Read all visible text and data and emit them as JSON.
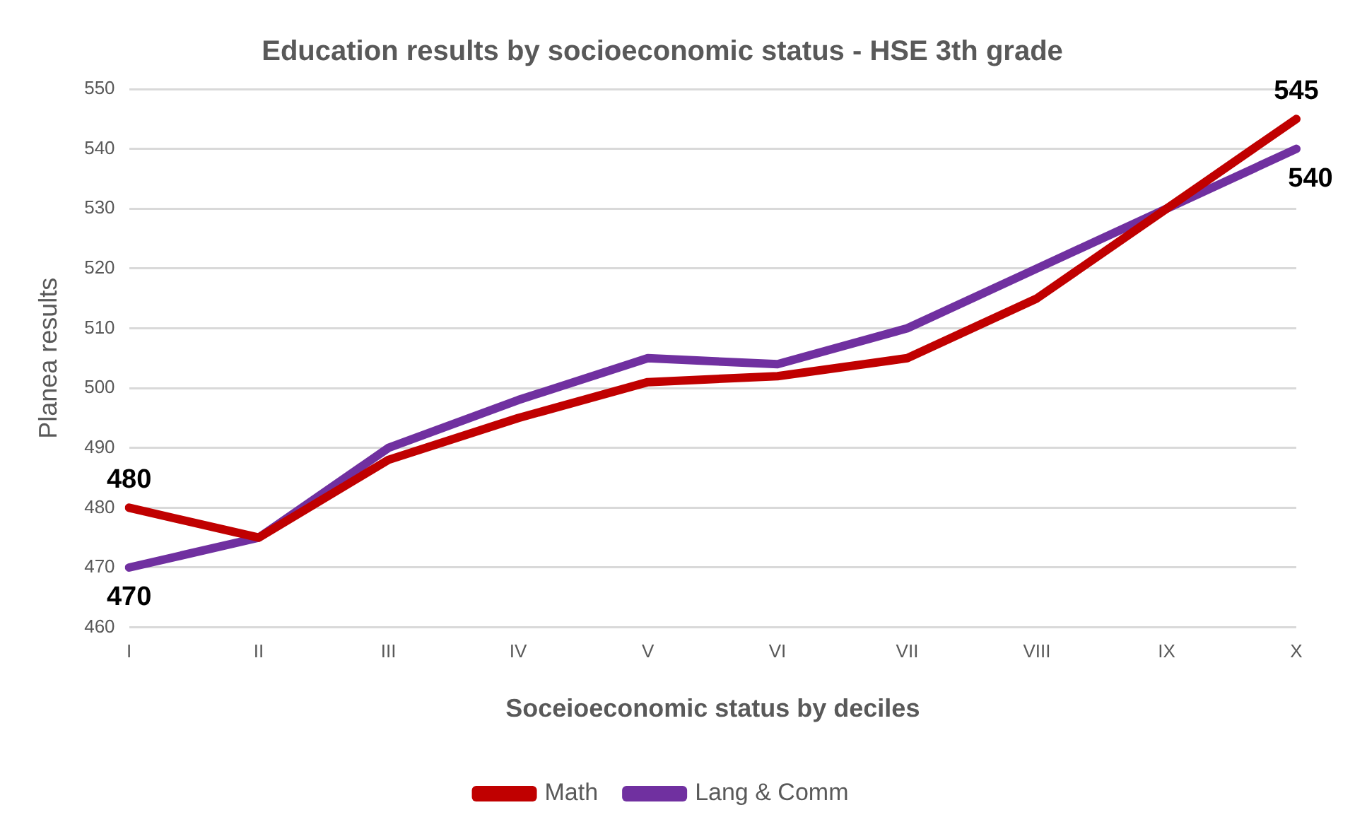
{
  "chart_data": {
    "type": "line",
    "title": "Education results by socioeconomic status - HSE 3th grade",
    "xlabel": "Soceioeconomic status by deciles",
    "ylabel": "Planea results",
    "categories": [
      "I",
      "II",
      "III",
      "IV",
      "V",
      "VI",
      "VII",
      "VIII",
      "IX",
      "X"
    ],
    "series": [
      {
        "name": "Math",
        "color": "#c00000",
        "values": [
          480,
          475,
          488,
          495,
          501,
          502,
          505,
          515,
          530,
          545
        ]
      },
      {
        "name": "Lang & Comm",
        "color": "#7030a0",
        "values": [
          470,
          475,
          490,
          498,
          505,
          504,
          510,
          520,
          530,
          540
        ]
      }
    ],
    "ylim": [
      460,
      550
    ],
    "yticks": [
      460,
      470,
      480,
      490,
      500,
      510,
      520,
      530,
      540,
      550
    ],
    "grid": "y",
    "legend": "bottom",
    "marker": "none",
    "line_style": "solid",
    "annotations": [
      {
        "text": "480",
        "x": "I",
        "y": 480
      },
      {
        "text": "470",
        "x": "I",
        "y": 470
      },
      {
        "text": "545",
        "x": "X",
        "y": 545
      },
      {
        "text": "540",
        "x": "X",
        "y": 540
      }
    ]
  }
}
